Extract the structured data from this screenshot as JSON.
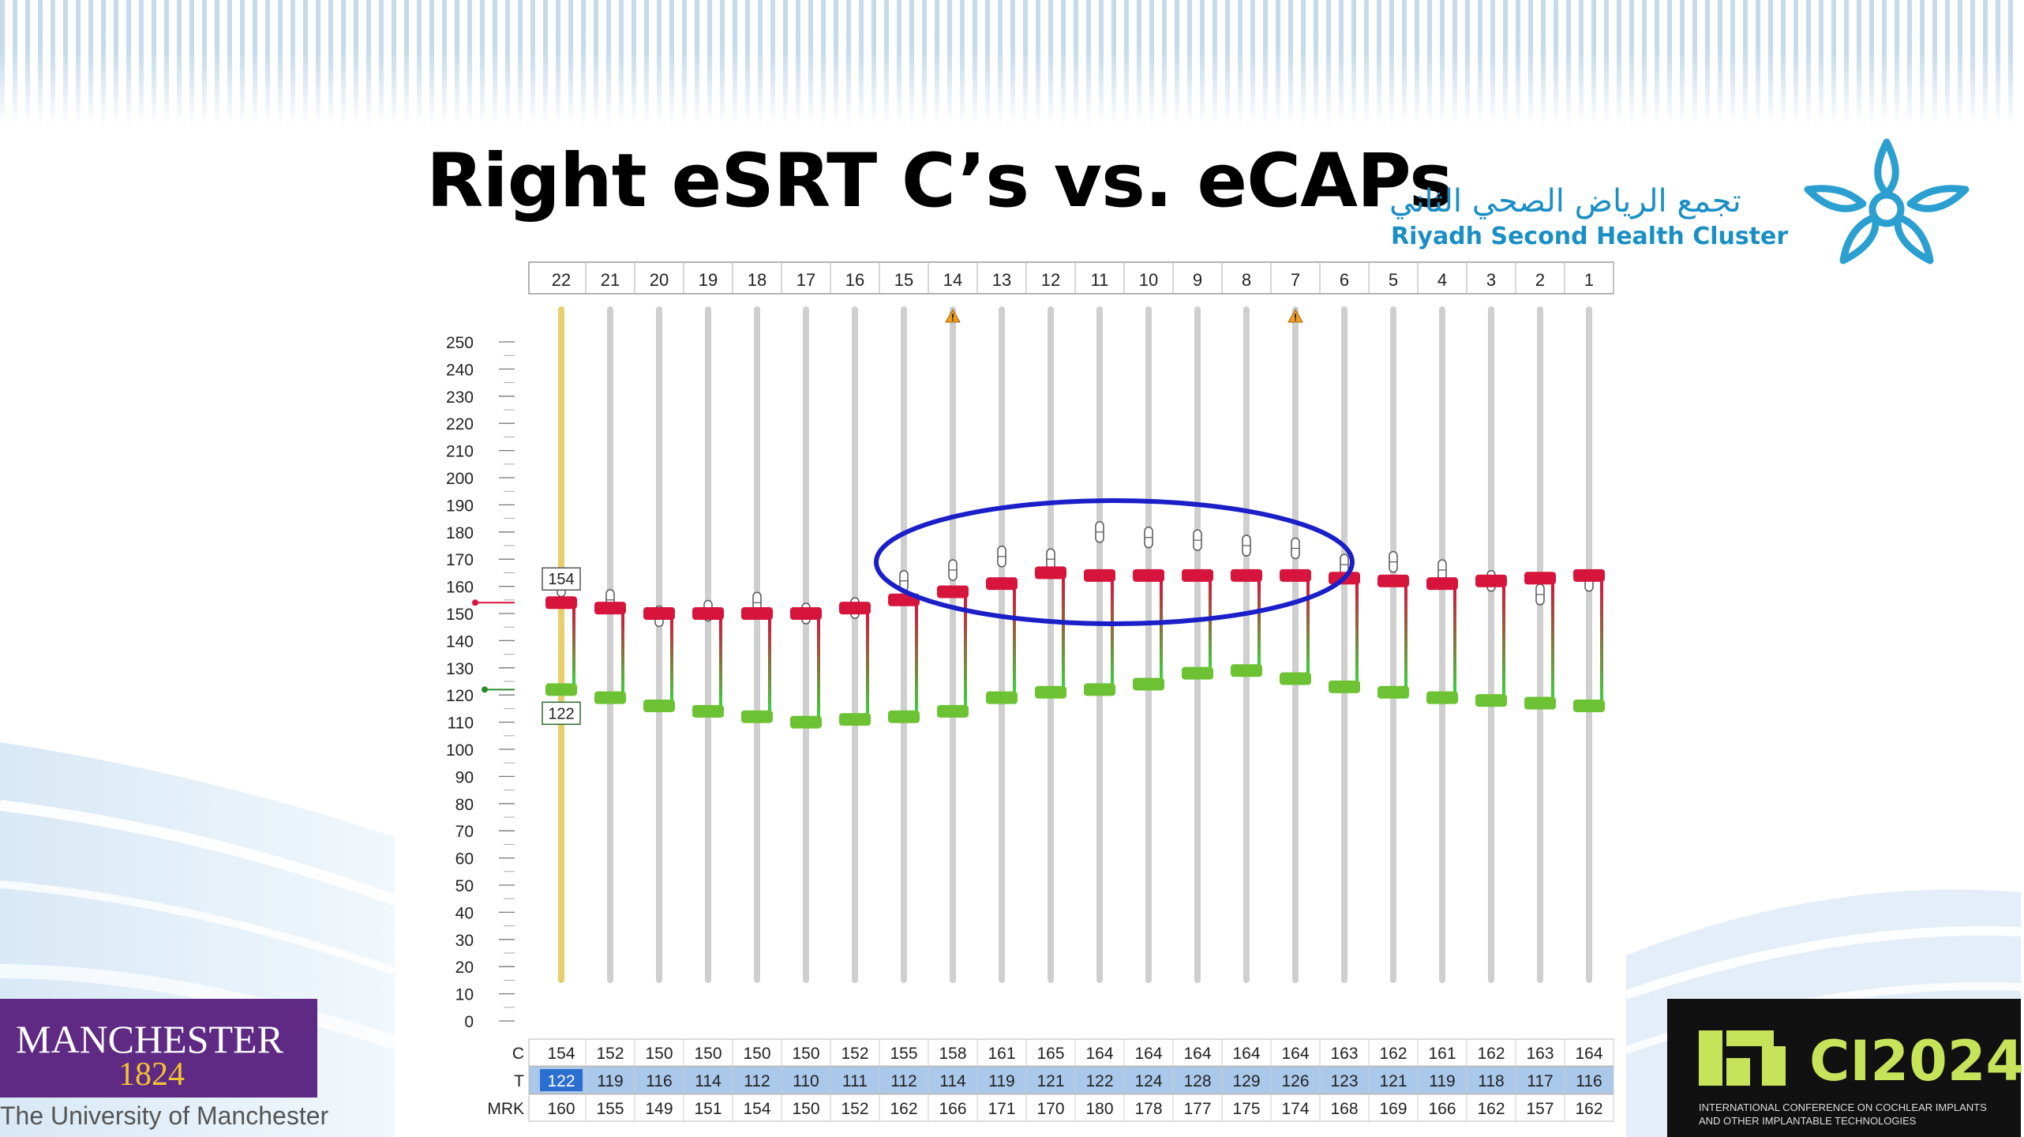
{
  "slide": {
    "title": "Right eSRT C’s vs. eCAPs"
  },
  "logos": {
    "rsh_arabic": "تجمع الرياض الصحي الثاني",
    "rsh_english": "Riyadh Second Health Cluster",
    "manchester_name": "MANCHESTER",
    "manchester_year": "1824",
    "manchester_university": "The University of Manchester",
    "ci_name": "CI2024",
    "ci_sub1": "INTERNATIONAL CONFERENCE ON COCHLEAR IMPLANTS",
    "ci_sub2": "AND OTHER IMPLANTABLE TECHNOLOGIES"
  },
  "colors": {
    "c_level": "#d6143c",
    "t_level": "#6cc233",
    "selected_electrode": "#e8cf6c",
    "ellipse": "#1a1fc8",
    "row_highlight": "#a9c8ea",
    "rsh_blue": "#1a8fc4",
    "manchester_purple": "#5e2a84"
  },
  "chart_data": {
    "type": "table",
    "electrodes": [
      "22",
      "21",
      "20",
      "19",
      "18",
      "17",
      "16",
      "15",
      "14",
      "13",
      "12",
      "11",
      "10",
      "9",
      "8",
      "7",
      "6",
      "5",
      "4",
      "3",
      "2",
      "1"
    ],
    "row_labels": {
      "c": "C",
      "t": "T",
      "mrk": "MRK"
    },
    "C": [
      154,
      152,
      150,
      150,
      150,
      150,
      152,
      155,
      158,
      161,
      165,
      164,
      164,
      164,
      164,
      164,
      163,
      162,
      161,
      162,
      163,
      164
    ],
    "T": [
      122,
      119,
      116,
      114,
      112,
      110,
      111,
      112,
      114,
      119,
      121,
      122,
      124,
      128,
      129,
      126,
      123,
      121,
      119,
      118,
      117,
      116
    ],
    "MRK": [
      160,
      155,
      149,
      151,
      154,
      150,
      152,
      162,
      166,
      171,
      170,
      180,
      178,
      177,
      175,
      174,
      168,
      169,
      166,
      162,
      157,
      162
    ],
    "y_ticks": [
      "250",
      "240",
      "230",
      "220",
      "210",
      "200",
      "190",
      "180",
      "170",
      "160",
      "150",
      "140",
      "130",
      "120",
      "110",
      "100",
      "90",
      "80",
      "70",
      "60",
      "50",
      "40",
      "30",
      "20",
      "10",
      "0"
    ],
    "ylim": [
      0,
      250
    ],
    "selected_electrode": "22",
    "selected_c_label": "154",
    "selected_t_label": "122",
    "warning_markers": [
      "14",
      "7"
    ],
    "warning_glyph": "!",
    "highlight_ellipse_electrodes": [
      "15",
      "6"
    ]
  }
}
